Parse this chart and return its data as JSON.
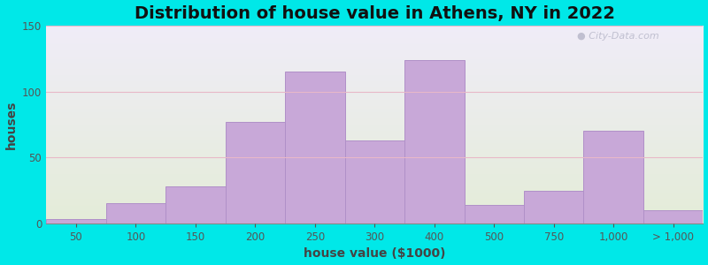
{
  "title": "Distribution of house value in Athens, NY in 2022",
  "xlabel": "house value ($1000)",
  "ylabel": "houses",
  "bar_labels": [
    "50",
    "100",
    "150",
    "200",
    "250",
    "300",
    "400",
    "500",
    "750",
    "1,000",
    "> 1,000"
  ],
  "bar_values": [
    3,
    15,
    28,
    77,
    115,
    63,
    124,
    14,
    25,
    70,
    10
  ],
  "bar_color": "#c8a8d8",
  "bar_edge_color": "#b090c8",
  "background_outer": "#00e8e8",
  "background_top_color": "#e4edd8",
  "background_bottom_color": "#f0ecf8",
  "ylim": [
    0,
    150
  ],
  "yticks": [
    0,
    50,
    100,
    150
  ],
  "title_fontsize": 14,
  "axis_label_fontsize": 10,
  "tick_fontsize": 8.5,
  "watermark_text": "City-Data.com"
}
